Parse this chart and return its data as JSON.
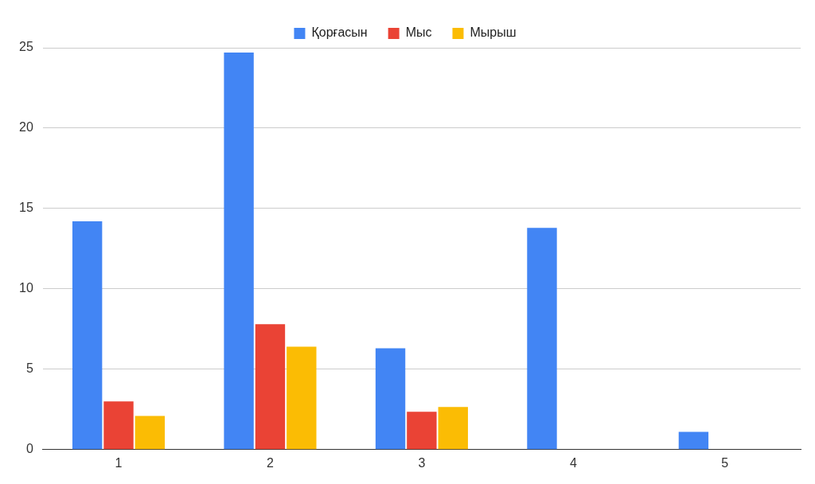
{
  "chart_data": {
    "type": "bar",
    "categories": [
      "1",
      "2",
      "3",
      "4",
      "5"
    ],
    "series": [
      {
        "name": "Қорғасын",
        "color": "#4285f4",
        "values": [
          14.2,
          24.7,
          6.3,
          13.8,
          1.1
        ]
      },
      {
        "name": "Мыс",
        "color": "#ea4335",
        "values": [
          3.0,
          7.8,
          2.35,
          null,
          null
        ]
      },
      {
        "name": "Мырыш",
        "color": "#fbbc04",
        "values": [
          2.1,
          6.4,
          2.65,
          null,
          null
        ]
      }
    ],
    "ylim": [
      0,
      25
    ],
    "yticks": [
      0,
      5,
      10,
      15,
      20,
      25
    ],
    "grid": "y",
    "legend": "top"
  }
}
